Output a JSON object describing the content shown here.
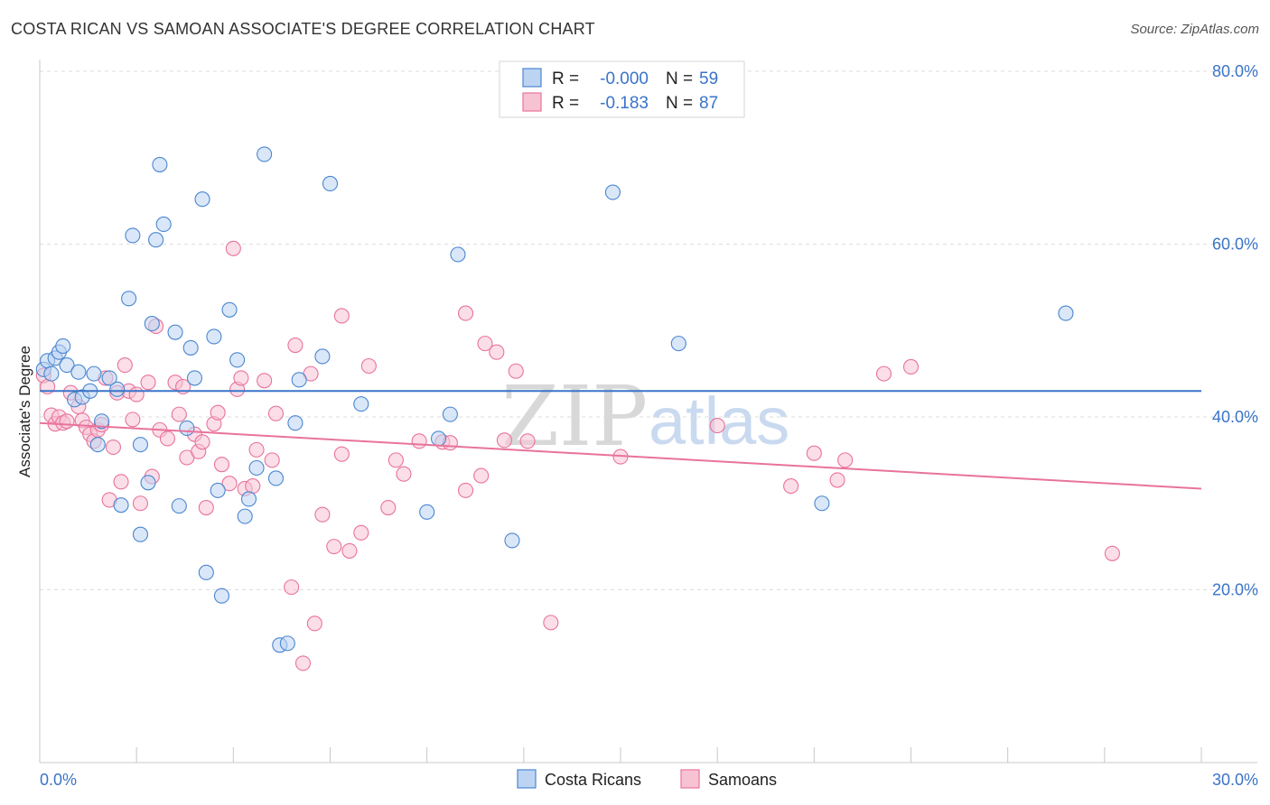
{
  "header": {
    "title": "COSTA RICAN VS SAMOAN ASSOCIATE'S DEGREE CORRELATION CHART",
    "source": "Source: ZipAtlas.com"
  },
  "watermark": {
    "zip": "ZIP",
    "atlas": "atlas"
  },
  "legend": {
    "rows": [
      {
        "r_label": "R =",
        "r_value": "-0.000",
        "n_label": "N =",
        "n_value": "59"
      },
      {
        "r_label": "R =",
        "r_value": "-0.183",
        "n_label": "N =",
        "n_value": "87"
      }
    ]
  },
  "bottom_legend": {
    "series1": "Costa Ricans",
    "series2": "Samoans"
  },
  "chart_data": {
    "type": "scatter",
    "title": "COSTA RICAN VS SAMOAN ASSOCIATE'S DEGREE CORRELATION CHART",
    "xlabel": "",
    "ylabel": "Associate's Degree",
    "xlim": [
      0,
      30
    ],
    "ylim": [
      0,
      80
    ],
    "x_tick_labels": [
      "0.0%",
      "30.0%"
    ],
    "y_ticks": [
      20,
      40,
      60,
      80
    ],
    "y_tick_labels": [
      "20.0%",
      "40.0%",
      "60.0%",
      "80.0%"
    ],
    "colors": {
      "series1": "#4a86d0",
      "series2": "#e8739c",
      "series1_fill": "#bcd4f2",
      "series2_fill": "#f7c3d3",
      "tick": "#3a74c8"
    },
    "series": [
      {
        "name": "Costa Ricans",
        "trend": [
          [
            0,
            43.0
          ],
          [
            30,
            43.0
          ]
        ],
        "points": [
          [
            0.1,
            45.5
          ],
          [
            0.2,
            46.5
          ],
          [
            0.3,
            45.0
          ],
          [
            0.4,
            46.8
          ],
          [
            0.5,
            47.5
          ],
          [
            0.6,
            48.2
          ],
          [
            0.7,
            46.0
          ],
          [
            0.9,
            42.0
          ],
          [
            1.0,
            45.2
          ],
          [
            1.1,
            42.3
          ],
          [
            1.3,
            43.0
          ],
          [
            1.4,
            45.0
          ],
          [
            1.5,
            36.8
          ],
          [
            1.6,
            39.5
          ],
          [
            1.8,
            44.5
          ],
          [
            2.0,
            43.2
          ],
          [
            2.1,
            29.8
          ],
          [
            2.3,
            53.7
          ],
          [
            2.4,
            61.0
          ],
          [
            2.6,
            36.8
          ],
          [
            2.6,
            26.4
          ],
          [
            2.8,
            32.4
          ],
          [
            2.9,
            50.8
          ],
          [
            3.0,
            60.5
          ],
          [
            3.1,
            69.2
          ],
          [
            3.2,
            62.3
          ],
          [
            3.5,
            49.8
          ],
          [
            3.6,
            29.7
          ],
          [
            3.8,
            38.7
          ],
          [
            3.9,
            48.0
          ],
          [
            4.0,
            44.5
          ],
          [
            4.2,
            65.2
          ],
          [
            4.3,
            22.0
          ],
          [
            4.5,
            49.3
          ],
          [
            4.6,
            31.5
          ],
          [
            4.7,
            19.3
          ],
          [
            4.9,
            52.4
          ],
          [
            5.1,
            46.6
          ],
          [
            5.3,
            28.5
          ],
          [
            5.4,
            30.5
          ],
          [
            5.6,
            34.1
          ],
          [
            5.8,
            70.4
          ],
          [
            6.1,
            32.9
          ],
          [
            6.2,
            13.6
          ],
          [
            6.4,
            13.8
          ],
          [
            6.6,
            39.3
          ],
          [
            6.7,
            44.3
          ],
          [
            7.3,
            47.0
          ],
          [
            7.5,
            67.0
          ],
          [
            8.3,
            41.5
          ],
          [
            10.0,
            29.0
          ],
          [
            10.3,
            37.5
          ],
          [
            10.6,
            40.3
          ],
          [
            10.8,
            58.8
          ],
          [
            12.2,
            25.7
          ],
          [
            14.8,
            66.0
          ],
          [
            16.5,
            48.5
          ],
          [
            20.2,
            30.0
          ],
          [
            26.5,
            52.0
          ]
        ]
      },
      {
        "name": "Samoans",
        "trend": [
          [
            0,
            39.3
          ],
          [
            30,
            31.7
          ]
        ],
        "points": [
          [
            0.1,
            44.8
          ],
          [
            0.2,
            43.5
          ],
          [
            0.3,
            40.2
          ],
          [
            0.4,
            39.2
          ],
          [
            0.5,
            40.0
          ],
          [
            0.6,
            39.3
          ],
          [
            0.7,
            39.5
          ],
          [
            0.8,
            42.8
          ],
          [
            1.0,
            41.2
          ],
          [
            1.1,
            39.6
          ],
          [
            1.2,
            38.8
          ],
          [
            1.3,
            38.0
          ],
          [
            1.4,
            37.2
          ],
          [
            1.5,
            38.5
          ],
          [
            1.6,
            39.1
          ],
          [
            1.7,
            44.5
          ],
          [
            1.8,
            30.4
          ],
          [
            1.9,
            36.5
          ],
          [
            2.0,
            42.8
          ],
          [
            2.1,
            32.5
          ],
          [
            2.2,
            46.0
          ],
          [
            2.3,
            43.0
          ],
          [
            2.4,
            39.7
          ],
          [
            2.5,
            42.6
          ],
          [
            2.6,
            30.0
          ],
          [
            2.8,
            44.0
          ],
          [
            2.9,
            33.1
          ],
          [
            3.0,
            50.5
          ],
          [
            3.1,
            38.5
          ],
          [
            3.3,
            37.5
          ],
          [
            3.5,
            44.0
          ],
          [
            3.6,
            40.3
          ],
          [
            3.7,
            43.5
          ],
          [
            3.8,
            35.3
          ],
          [
            4.0,
            38.0
          ],
          [
            4.1,
            36.0
          ],
          [
            4.2,
            37.1
          ],
          [
            4.3,
            29.5
          ],
          [
            4.5,
            39.2
          ],
          [
            4.6,
            40.5
          ],
          [
            4.7,
            34.5
          ],
          [
            4.9,
            32.3
          ],
          [
            5.0,
            59.5
          ],
          [
            5.1,
            43.2
          ],
          [
            5.2,
            44.5
          ],
          [
            5.3,
            31.7
          ],
          [
            5.5,
            32.0
          ],
          [
            5.6,
            36.2
          ],
          [
            5.8,
            44.2
          ],
          [
            6.0,
            35.0
          ],
          [
            6.1,
            40.4
          ],
          [
            6.5,
            20.3
          ],
          [
            6.6,
            48.3
          ],
          [
            6.8,
            11.5
          ],
          [
            7.0,
            45.0
          ],
          [
            7.1,
            16.1
          ],
          [
            7.3,
            28.7
          ],
          [
            7.6,
            25.0
          ],
          [
            7.8,
            51.7
          ],
          [
            7.8,
            35.7
          ],
          [
            8.0,
            24.5
          ],
          [
            8.3,
            26.6
          ],
          [
            8.5,
            45.9
          ],
          [
            9.0,
            29.5
          ],
          [
            9.2,
            35.0
          ],
          [
            9.4,
            33.4
          ],
          [
            9.8,
            37.2
          ],
          [
            10.4,
            37.1
          ],
          [
            10.6,
            37.0
          ],
          [
            11.0,
            31.5
          ],
          [
            11.0,
            52.0
          ],
          [
            11.4,
            33.2
          ],
          [
            11.5,
            48.5
          ],
          [
            11.8,
            47.5
          ],
          [
            12.0,
            37.3
          ],
          [
            12.3,
            45.3
          ],
          [
            12.6,
            37.2
          ],
          [
            13.2,
            16.2
          ],
          [
            15.0,
            35.4
          ],
          [
            17.5,
            39.0
          ],
          [
            19.4,
            32.0
          ],
          [
            20.0,
            35.8
          ],
          [
            20.6,
            32.7
          ],
          [
            20.8,
            35.0
          ],
          [
            21.8,
            45.0
          ],
          [
            22.5,
            45.8
          ],
          [
            27.7,
            24.2
          ]
        ]
      }
    ]
  }
}
